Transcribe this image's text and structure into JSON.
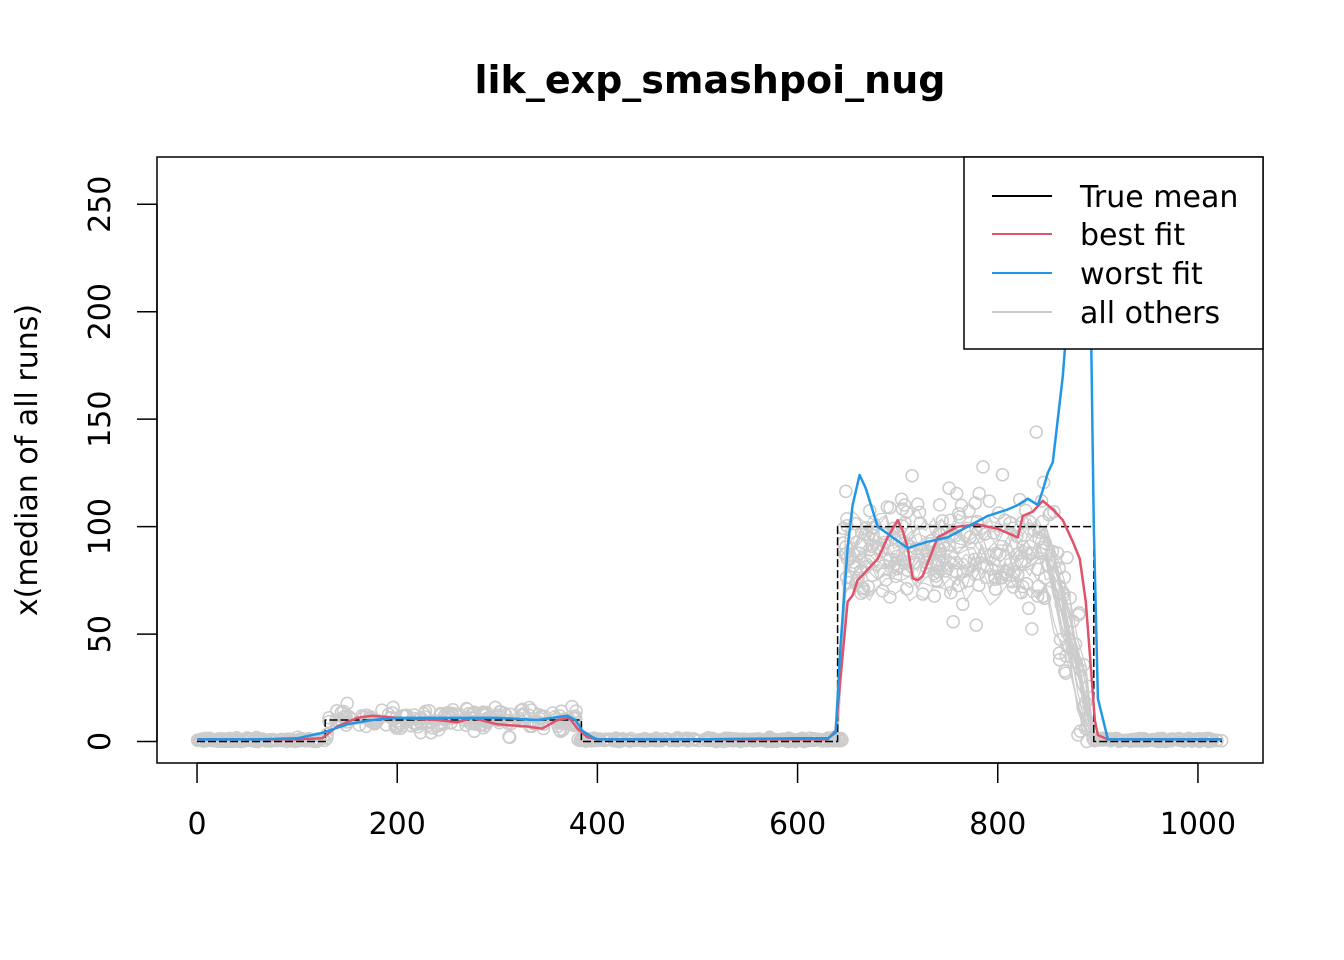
{
  "chart_data": {
    "type": "line",
    "title": "lik_exp_smashpoi_nug",
    "xlabel": "",
    "ylabel": "x(median of all runs)",
    "xlim": [
      -40,
      1065
    ],
    "ylim": [
      -10,
      272
    ],
    "x_ticks": [
      0,
      200,
      400,
      600,
      800,
      1000
    ],
    "y_ticks": [
      0,
      50,
      100,
      150,
      200,
      250
    ],
    "legend_position": "top-right",
    "colors": {
      "true_mean": "#000000",
      "best_fit": "#DF536B",
      "worst_fit": "#2297E6",
      "others": "#CCCCCC"
    },
    "series": [
      {
        "name": "True mean",
        "style": "step",
        "x": [
          0,
          128,
          128,
          384,
          384,
          640,
          640,
          896,
          896,
          1024
        ],
        "values": [
          0,
          0,
          10,
          10,
          0,
          0,
          100,
          100,
          0,
          0
        ]
      },
      {
        "name": "best fit",
        "x": [
          0,
          60,
          100,
          125,
          140,
          160,
          175,
          200,
          240,
          260,
          275,
          300,
          330,
          345,
          360,
          372,
          380,
          390,
          400,
          500,
          600,
          630,
          638,
          645,
          650,
          655,
          660,
          670,
          680,
          690,
          700,
          705,
          710,
          715,
          720,
          725,
          740,
          760,
          780,
          800,
          820,
          825,
          835,
          845,
          855,
          865,
          875,
          882,
          888,
          893,
          897,
          900,
          910,
          1024
        ],
        "values": [
          1,
          1,
          1,
          1.5,
          7,
          11,
          12,
          11,
          10,
          9,
          11,
          8,
          7,
          6,
          10,
          11,
          6,
          2,
          1,
          1,
          1,
          1,
          5,
          40,
          65,
          68,
          75,
          80,
          85,
          95,
          103,
          98,
          90,
          76,
          75,
          77,
          95,
          100,
          101,
          99,
          95,
          105,
          107,
          112,
          108,
          103,
          93,
          85,
          65,
          35,
          10,
          3,
          1,
          1
        ]
      },
      {
        "name": "worst fit",
        "x": [
          0,
          60,
          100,
          125,
          150,
          175,
          200,
          250,
          300,
          320,
          340,
          355,
          370,
          378,
          385,
          395,
          400,
          500,
          600,
          630,
          638,
          643,
          650,
          655,
          662,
          668,
          680,
          695,
          710,
          730,
          750,
          770,
          790,
          810,
          820,
          830,
          840,
          845,
          850,
          855,
          860,
          865,
          870,
          875,
          880,
          885,
          890,
          893,
          896,
          900,
          910,
          1024
        ],
        "values": [
          1,
          1,
          1.5,
          4,
          8,
          10,
          11,
          11,
          11,
          10.5,
          10,
          11,
          12,
          10,
          5,
          2,
          1,
          1,
          1.5,
          1.5,
          4,
          45,
          90,
          110,
          124,
          118,
          100,
          95,
          90,
          93,
          95,
          100,
          105,
          108,
          110,
          113,
          110,
          117,
          125,
          130,
          150,
          170,
          200,
          230,
          250,
          250,
          230,
          200,
          100,
          20,
          1,
          1
        ]
      },
      {
        "name": "all others",
        "style": "points",
        "x": [
          0,
          50,
          100,
          150,
          200,
          250,
          300,
          350,
          400,
          450,
          500,
          550,
          600,
          650,
          700,
          750,
          800,
          850,
          900,
          950,
          1000
        ],
        "values": [
          0,
          0,
          0,
          10,
          10,
          10,
          10,
          10,
          0,
          0,
          0,
          0,
          0,
          90,
          90,
          90,
          90,
          90,
          0,
          0,
          0
        ]
      }
    ]
  }
}
